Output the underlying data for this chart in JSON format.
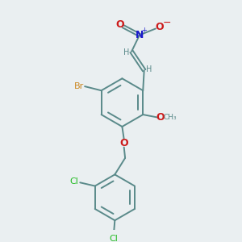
{
  "background_color": "#eaeff1",
  "bond_color": "#5a8a8a",
  "colors": {
    "N": "#1a1acc",
    "O": "#cc1a1a",
    "Br": "#cc8822",
    "Cl": "#22bb22",
    "C": "#5a8a8a",
    "H": "#5a8a8a"
  }
}
